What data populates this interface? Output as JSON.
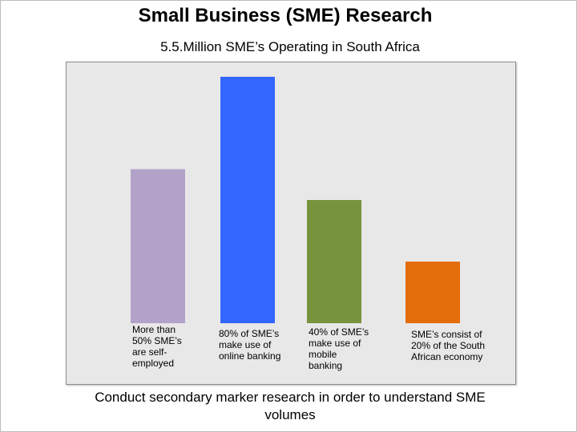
{
  "slide": {
    "title": "Small Business (SME) Research",
    "subtitle": "5.5.Million SME’s Operating in South Africa",
    "footer_line1": "Conduct secondary marker research in order to understand SME",
    "footer_line2": "volumes"
  },
  "chart_data": {
    "type": "bar",
    "title": "",
    "xlabel": "",
    "ylabel": "",
    "ylim": [
      0,
      100
    ],
    "grid": false,
    "categories": [
      "More than 50% SME’s are self-employed",
      "80% of SME’s make use of online banking",
      "40% of SME’s make use of mobile banking",
      "SME’s consist of 20% of the South African economy"
    ],
    "label_lines": [
      [
        "More than",
        "50% SME’s",
        "are self-",
        "employed"
      ],
      [
        "80% of SME’s",
        "make use of",
        "online banking"
      ],
      [
        "40% of SME’s",
        "make use of mobile",
        "banking"
      ],
      [
        "SME’s consist of",
        "20% of the South",
        "African economy"
      ]
    ],
    "values": [
      50,
      80,
      40,
      20
    ],
    "colors": [
      "#b3a2c8",
      "#3366ff",
      "#77933c",
      "#e46c0a"
    ]
  }
}
